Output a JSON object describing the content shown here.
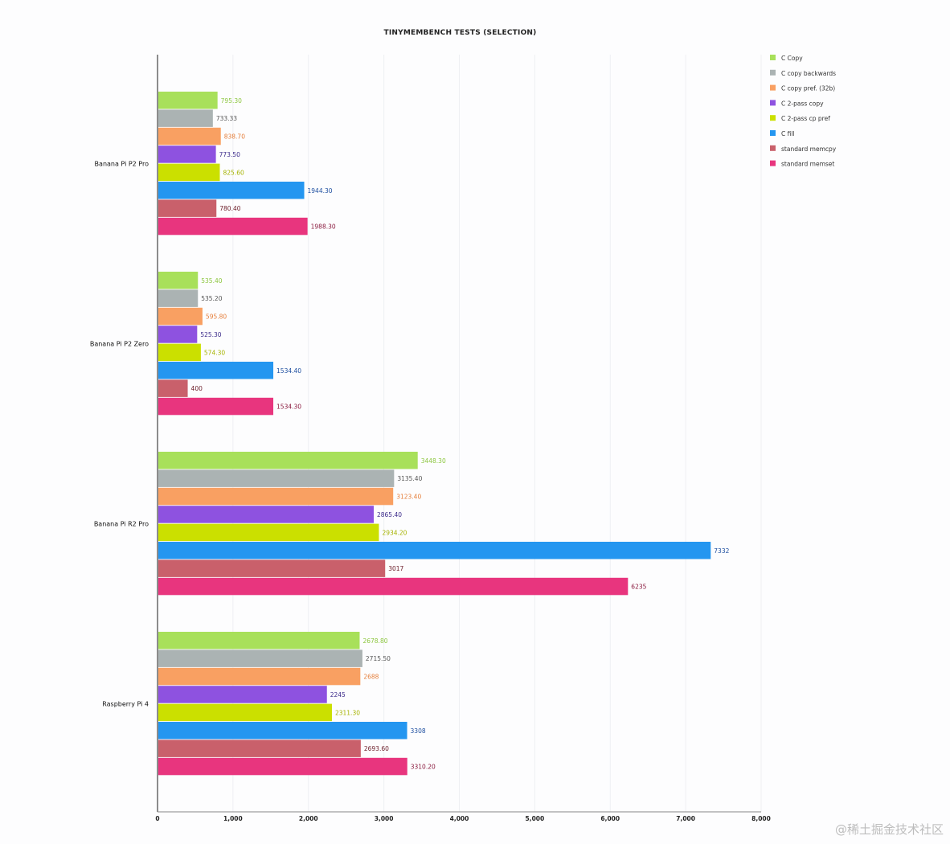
{
  "chart_data": {
    "type": "bar",
    "orientation": "horizontal",
    "title": "TINYMEMBENCH TESTS (SELECTION)",
    "xlabel": "",
    "ylabel": "",
    "xlim": [
      0,
      8000
    ],
    "x_ticks": [
      0,
      1000,
      2000,
      3000,
      4000,
      5000,
      6000,
      7000,
      8000
    ],
    "x_tick_labels": [
      "0",
      "1,000",
      "2,000",
      "3,000",
      "4,000",
      "5,000",
      "6,000",
      "7,000",
      "8,000"
    ],
    "grid": true,
    "legend_position": "top-right",
    "categories": [
      "Banana Pi P2 Pro",
      "Banana Pi P2 Zero",
      "Banana Pi R2 Pro",
      "Raspberry Pi 4"
    ],
    "series": [
      {
        "name": "C Copy",
        "color": "#a8e05a",
        "label_color": "#8cc63f",
        "values": [
          795.3,
          535.4,
          3448.3,
          2678.8
        ],
        "labels": [
          "795.30",
          "535.40",
          "3448.30",
          "2678.80"
        ]
      },
      {
        "name": "C copy backwards",
        "color": "#abb3b3",
        "label_color": "#555555",
        "values": [
          733.33,
          535.2,
          3135.4,
          2715.5
        ],
        "labels": [
          "733.33",
          "535.20",
          "3135.40",
          "2715.50"
        ]
      },
      {
        "name": "C copy pref. (32b)",
        "color": "#f9a062",
        "label_color": "#e57e3a",
        "values": [
          838.7,
          595.8,
          3123.4,
          2688
        ],
        "labels": [
          "838.70",
          "595.80",
          "3123.40",
          "2688"
        ]
      },
      {
        "name": "C 2-pass copy",
        "color": "#8e52e0",
        "label_color": "#3b2a8a",
        "values": [
          773.5,
          525.3,
          2865.4,
          2245
        ],
        "labels": [
          "773.50",
          "525.30",
          "2865.40",
          "2245"
        ]
      },
      {
        "name": "C 2-pass cp pref",
        "color": "#cbe000",
        "label_color": "#a6b300",
        "values": [
          825.6,
          574.3,
          2934.2,
          2311.3
        ],
        "labels": [
          "825.60",
          "574.30",
          "2934.20",
          "2311.30"
        ]
      },
      {
        "name": "C fill",
        "color": "#2496f0",
        "label_color": "#1e4fa0",
        "values": [
          1944.3,
          1534.4,
          7332,
          3308
        ],
        "labels": [
          "1944.30",
          "1534.40",
          "7332",
          "3308"
        ]
      },
      {
        "name": "standard memcpy",
        "color": "#c9606b",
        "label_color": "#6a1a26",
        "values": [
          780.4,
          400,
          3017,
          2693.6
        ],
        "labels": [
          "780.40",
          "400",
          "3017",
          "2693.60"
        ]
      },
      {
        "name": "standard memset",
        "color": "#e8357e",
        "label_color": "#8a1a3e",
        "values": [
          1988.3,
          1534.3,
          6235,
          3310.2
        ],
        "labels": [
          "1988.30",
          "1534.30",
          "6235",
          "3310.20"
        ]
      }
    ]
  },
  "watermark": "@稀土掘金技术社区"
}
